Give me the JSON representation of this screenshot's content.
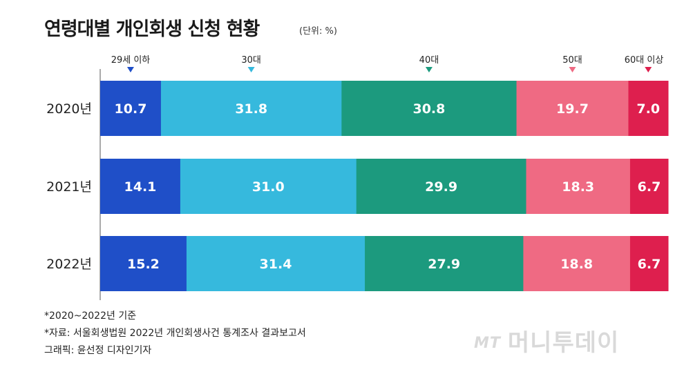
{
  "title": "연령대별 개인회생 신청 현황",
  "unit": "(단위: %)",
  "chart_data": {
    "type": "bar",
    "stacked": true,
    "orientation": "horizontal",
    "categories": [
      "2020년",
      "2021년",
      "2022년"
    ],
    "series": [
      {
        "name": "29세 이하",
        "color": "#1f4fc8",
        "values": [
          "10.7",
          "14.1",
          "15.2"
        ]
      },
      {
        "name": "30대",
        "color": "#36b9dd",
        "values": [
          "31.8",
          "31.0",
          "31.4"
        ]
      },
      {
        "name": "40대",
        "color": "#1c9a7e",
        "values": [
          "30.8",
          "29.9",
          "27.9"
        ]
      },
      {
        "name": "50대",
        "color": "#ef6a83",
        "values": [
          "19.7",
          "18.3",
          "18.8"
        ]
      },
      {
        "name": "60대 이상",
        "color": "#de1f4e",
        "values": [
          "7.0",
          "6.7",
          "6.7"
        ]
      }
    ],
    "legend": "top",
    "grid": false
  },
  "footnotes": [
    "*2020~2022년 기준",
    "*자료: 서울회생법원 2022년 개인회생사건 통계조사 결과보고서",
    "그래픽: 윤선정 디자인기자"
  ],
  "watermark": {
    "mt": "MT",
    "text": "머니투데이"
  }
}
